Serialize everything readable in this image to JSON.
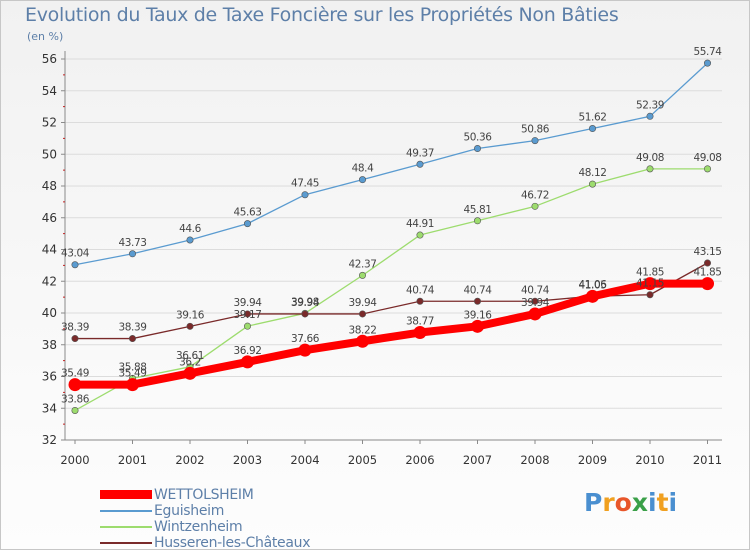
{
  "title": "Evolution du Taux de Taxe Foncière sur les Propriétés Non Bâties",
  "unit_label": "(en %)",
  "logo": {
    "text": "Proxiti",
    "letters": [
      {
        "ch": "P",
        "color": "#4a8fd0"
      },
      {
        "ch": "r",
        "color": "#f0a020"
      },
      {
        "ch": "o",
        "color": "#e8562a"
      },
      {
        "ch": "x",
        "color": "#3aa048"
      },
      {
        "ch": "i",
        "color": "#4a8fd0"
      },
      {
        "ch": "t",
        "color": "#f0a020"
      },
      {
        "ch": "i",
        "color": "#4a8fd0"
      }
    ]
  },
  "chart_data": {
    "type": "line",
    "x": [
      "2000",
      "2001",
      "2002",
      "2003",
      "2004",
      "2005",
      "2006",
      "2007",
      "2008",
      "2009",
      "2010",
      "2011"
    ],
    "ylim": [
      32,
      56
    ],
    "yticks": [
      32,
      34,
      36,
      38,
      40,
      42,
      44,
      46,
      48,
      50,
      52,
      54,
      56
    ],
    "grid": "horizontal",
    "legend_position": "bottom-left",
    "series": [
      {
        "name": "WETTOLSHEIM",
        "color": "#ff0000",
        "values": [
          35.49,
          35.49,
          36.2,
          36.92,
          37.66,
          38.22,
          38.77,
          39.16,
          39.94,
          41.05,
          41.85,
          41.85
        ],
        "labels": [
          "35.49",
          "35.49",
          "36.2",
          "36.92",
          "37.66",
          "38.22",
          "38.77",
          "39.16",
          "39.94",
          "41.05",
          "41.85",
          "41.85"
        ]
      },
      {
        "name": "Eguisheim",
        "color": "#5a9bd0",
        "values": [
          43.04,
          43.73,
          44.6,
          45.63,
          47.45,
          48.4,
          49.37,
          50.36,
          50.86,
          51.62,
          52.39,
          55.74
        ],
        "labels": [
          "43.04",
          "43.73",
          "44.6",
          "45.63",
          "47.45",
          "48.4",
          "49.37",
          "50.36",
          "50.86",
          "51.62",
          "52.39",
          "55.74"
        ]
      },
      {
        "name": "Wintzenheim",
        "color": "#9ddc6e",
        "values": [
          33.86,
          35.88,
          36.61,
          39.17,
          39.98,
          42.37,
          44.91,
          45.81,
          46.72,
          48.12,
          49.08,
          49.08
        ],
        "labels": [
          "33.86",
          "35.88",
          "36.61",
          "39.17",
          "39.98",
          "42.37",
          "44.91",
          "45.81",
          "46.72",
          "48.12",
          "49.08",
          "49.08"
        ]
      },
      {
        "name": "Husseren-les-Châteaux",
        "color": "#7a2a2a",
        "values": [
          38.39,
          38.39,
          39.16,
          39.94,
          39.94,
          39.94,
          40.74,
          40.74,
          40.74,
          41.06,
          41.15,
          43.15
        ],
        "labels": [
          "38.39",
          "38.39",
          "39.16",
          "39.94",
          "39.94",
          "39.94",
          "40.74",
          "40.74",
          "40.74",
          "41.06",
          "41.15",
          "43.15"
        ]
      }
    ]
  }
}
